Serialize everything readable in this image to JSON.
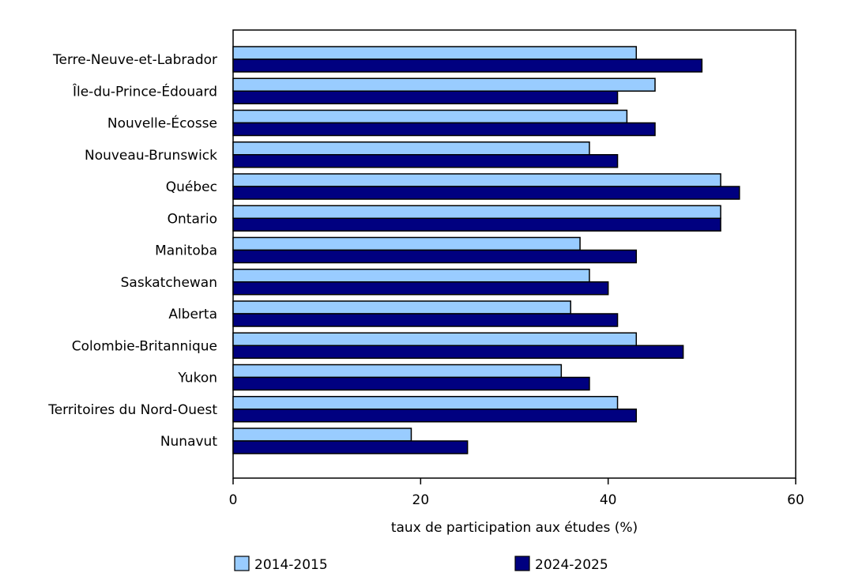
{
  "chart_data": {
    "type": "bar",
    "orientation": "horizontal",
    "title": "",
    "xlabel": "taux de participation aux études (%)",
    "ylabel": "",
    "xlim": [
      0,
      60
    ],
    "xticks": [
      0,
      20,
      40,
      60
    ],
    "grid": false,
    "legend_position": "bottom",
    "categories": [
      "Terre-Neuve-et-Labrador",
      "Île-du-Prince-Édouard",
      "Nouvelle-Écosse",
      "Nouveau-Brunswick",
      "Québec",
      "Ontario",
      "Manitoba",
      "Saskatchewan",
      "Alberta",
      "Colombie-Britannique",
      "Yukon",
      "Territoires du Nord-Ouest",
      "Nunavut"
    ],
    "series": [
      {
        "name": "2014-2015",
        "color": "#99ccff",
        "values": [
          43,
          45,
          42,
          38,
          52,
          52,
          37,
          38,
          36,
          43,
          35,
          41,
          19
        ]
      },
      {
        "name": "2024-2025",
        "color": "#000080",
        "values": [
          50,
          41,
          45,
          41,
          54,
          52,
          43,
          40,
          41,
          48,
          38,
          43,
          25
        ]
      }
    ]
  }
}
